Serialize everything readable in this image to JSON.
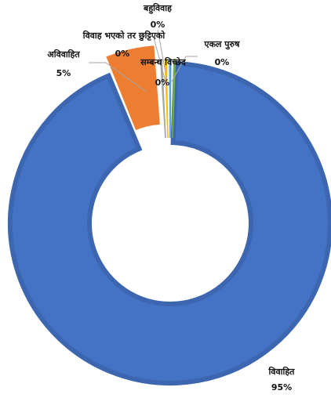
{
  "chart_data": {
    "type": "pie",
    "variant": "donut",
    "slices": [
      {
        "label": "विवाहित",
        "value_label": "95%",
        "value": 95,
        "color": "#4472c4"
      },
      {
        "label": "अविवाहित",
        "value_label": "5%",
        "value": 5,
        "color": "#ed7d31"
      },
      {
        "label": "बहुविवाह",
        "value_label": "0%",
        "value": 0.25,
        "color": "#a5a5a5"
      },
      {
        "label": "विवाह भएको तर छुट्टिएको",
        "value_label": "0%",
        "value": 0.25,
        "color": "#ffc000"
      },
      {
        "label": "सम्बन्ध विच्छेद",
        "value_label": "0%",
        "value": 0.25,
        "color": "#5b9bd5"
      },
      {
        "label": "एकल पुरुष",
        "value_label": "0%",
        "value": 0.25,
        "color": "#70ad47"
      }
    ]
  }
}
